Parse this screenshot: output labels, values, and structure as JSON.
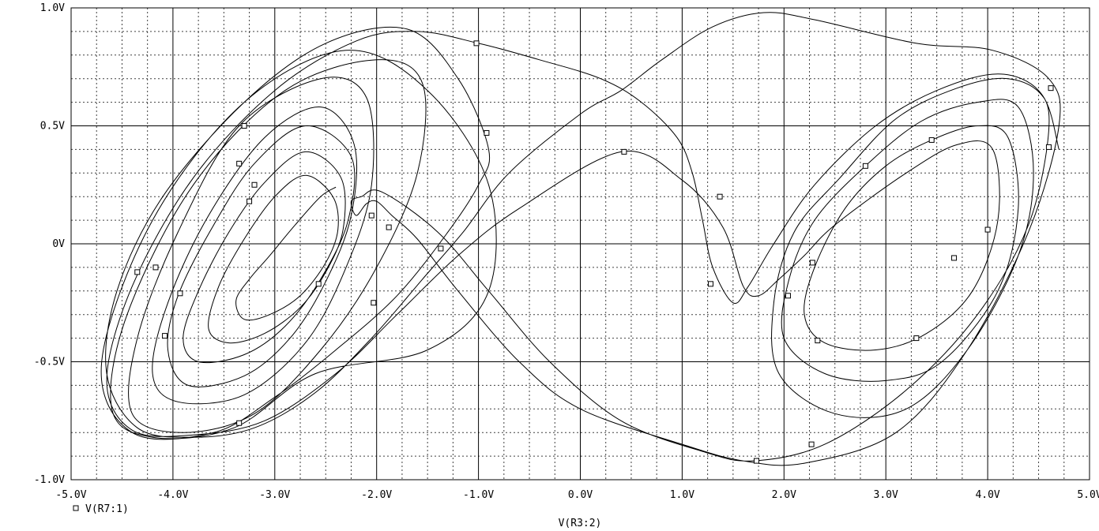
{
  "chart_data": {
    "type": "line",
    "xlabel": "V(R3:2)",
    "ylabel": "",
    "xlim": [
      -5.0,
      5.0
    ],
    "ylim": [
      -1.0,
      1.0
    ],
    "grid": true,
    "x_ticks": [
      {
        "value": -5.0,
        "label": "-5.0V"
      },
      {
        "value": -4.0,
        "label": "-4.0V"
      },
      {
        "value": -3.0,
        "label": "-3.0V"
      },
      {
        "value": -2.0,
        "label": "-2.0V"
      },
      {
        "value": -1.0,
        "label": "-1.0V"
      },
      {
        "value": 0.0,
        "label": "0.0V"
      },
      {
        "value": 1.0,
        "label": "1.0V"
      },
      {
        "value": 2.0,
        "label": "2.0V"
      },
      {
        "value": 3.0,
        "label": "3.0V"
      },
      {
        "value": 4.0,
        "label": "4.0V"
      },
      {
        "value": 5.0,
        "label": "5.0V"
      }
    ],
    "y_ticks": [
      {
        "value": 1.0,
        "label": "1.0V"
      },
      {
        "value": 0.5,
        "label": "0.5V"
      },
      {
        "value": 0.0,
        "label": "0V"
      },
      {
        "value": -0.5,
        "label": "-0.5V"
      },
      {
        "value": -1.0,
        "label": "-1.0V"
      }
    ],
    "series": [
      {
        "name": "V(R7:1)",
        "legend_symbol": "□",
        "points": [
          [
            -2.4,
            0.24
          ],
          [
            -2.55,
            0.2
          ],
          [
            -2.8,
            0.08
          ],
          [
            -3.05,
            -0.05
          ],
          [
            -3.25,
            -0.15
          ],
          [
            -3.38,
            -0.24
          ],
          [
            -3.3,
            -0.32
          ],
          [
            -3.05,
            -0.3
          ],
          [
            -2.75,
            -0.22
          ],
          [
            -2.5,
            -0.08
          ],
          [
            -2.38,
            0.06
          ],
          [
            -2.43,
            0.2
          ],
          [
            -2.7,
            0.29
          ],
          [
            -3.0,
            0.2
          ],
          [
            -3.3,
            0.02
          ],
          [
            -3.55,
            -0.18
          ],
          [
            -3.65,
            -0.36
          ],
          [
            -3.45,
            -0.42
          ],
          [
            -3.1,
            -0.38
          ],
          [
            -2.75,
            -0.27
          ],
          [
            -2.5,
            -0.12
          ],
          [
            -2.33,
            0.06
          ],
          [
            -2.35,
            0.28
          ],
          [
            -2.7,
            0.39
          ],
          [
            -3.1,
            0.26
          ],
          [
            -3.45,
            0.05
          ],
          [
            -3.75,
            -0.2
          ],
          [
            -3.9,
            -0.4
          ],
          [
            -3.75,
            -0.5
          ],
          [
            -3.3,
            -0.47
          ],
          [
            -2.9,
            -0.35
          ],
          [
            -2.55,
            -0.15
          ],
          [
            -2.28,
            0.1
          ],
          [
            -2.25,
            0.37
          ],
          [
            -2.7,
            0.5
          ],
          [
            -3.2,
            0.34
          ],
          [
            -3.6,
            0.08
          ],
          [
            -3.95,
            -0.22
          ],
          [
            -4.05,
            -0.45
          ],
          [
            -3.85,
            -0.6
          ],
          [
            -3.3,
            -0.56
          ],
          [
            -2.85,
            -0.4
          ],
          [
            -2.5,
            -0.16
          ],
          [
            -2.25,
            0.12
          ],
          [
            -2.22,
            0.42
          ],
          [
            -2.55,
            0.58
          ],
          [
            -3.1,
            0.45
          ],
          [
            -3.65,
            0.12
          ],
          [
            -4.05,
            -0.25
          ],
          [
            -4.2,
            -0.55
          ],
          [
            -3.95,
            -0.67
          ],
          [
            -3.3,
            -0.64
          ],
          [
            -2.7,
            -0.42
          ],
          [
            -2.3,
            -0.1
          ],
          [
            -2.05,
            0.25
          ],
          [
            -2.1,
            0.62
          ],
          [
            -2.55,
            0.7
          ],
          [
            -3.35,
            0.5
          ],
          [
            -3.95,
            0.05
          ],
          [
            -4.35,
            -0.4
          ],
          [
            -4.4,
            -0.72
          ],
          [
            -3.9,
            -0.8
          ],
          [
            -3.2,
            -0.72
          ],
          [
            -2.55,
            -0.45
          ],
          [
            -2.0,
            -0.1
          ],
          [
            -1.6,
            0.3
          ],
          [
            -1.55,
            0.68
          ],
          [
            -2.0,
            0.78
          ],
          [
            -2.9,
            0.65
          ],
          [
            -3.8,
            0.25
          ],
          [
            -4.45,
            -0.3
          ],
          [
            -4.6,
            -0.7
          ],
          [
            -4.2,
            -0.82
          ],
          [
            -3.4,
            -0.78
          ],
          [
            -2.6,
            -0.55
          ],
          [
            -1.5,
            -0.45
          ],
          [
            -0.9,
            -0.2
          ],
          [
            -0.9,
            0.25
          ],
          [
            -1.5,
            0.65
          ],
          [
            -2.3,
            0.82
          ],
          [
            -3.3,
            0.6
          ],
          [
            -4.2,
            0.1
          ],
          [
            -4.7,
            -0.5
          ],
          [
            -4.4,
            -0.8
          ],
          [
            -3.6,
            -0.8
          ],
          [
            -3.0,
            -0.65
          ],
          [
            -2.4,
            -0.45
          ],
          [
            -1.8,
            -0.22
          ],
          [
            -1.3,
            0.05
          ],
          [
            -1.0,
            0.25
          ],
          [
            -0.9,
            0.4
          ],
          [
            -1.2,
            0.7
          ],
          [
            -1.7,
            0.91
          ],
          [
            -2.5,
            0.85
          ],
          [
            -3.3,
            0.6
          ],
          [
            -4.1,
            0.2
          ],
          [
            -4.55,
            -0.2
          ],
          [
            -4.65,
            -0.55
          ],
          [
            -4.35,
            -0.78
          ],
          [
            -3.8,
            -0.82
          ],
          [
            -3.2,
            -0.78
          ],
          [
            -2.6,
            -0.63
          ],
          [
            -2.05,
            -0.4
          ],
          [
            -1.55,
            -0.15
          ],
          [
            -1.15,
            0.05
          ],
          [
            -0.7,
            0.3
          ],
          [
            0.0,
            0.55
          ],
          [
            0.4,
            0.65
          ],
          [
            0.8,
            0.78
          ],
          [
            1.3,
            0.92
          ],
          [
            1.8,
            0.98
          ],
          [
            2.3,
            0.95
          ],
          [
            3.3,
            0.85
          ],
          [
            4.05,
            0.82
          ],
          [
            4.6,
            0.7
          ],
          [
            4.7,
            0.5
          ],
          [
            4.4,
            0.05
          ],
          [
            3.8,
            -0.45
          ],
          [
            3.1,
            -0.8
          ],
          [
            2.2,
            -0.93
          ],
          [
            1.6,
            -0.92
          ],
          [
            1.0,
            -0.85
          ],
          [
            0.0,
            -0.7
          ],
          [
            -0.6,
            -0.5
          ],
          [
            -1.2,
            -0.2
          ],
          [
            -1.6,
            0.02
          ],
          [
            -1.85,
            0.12
          ],
          [
            -2.0,
            0.18
          ],
          [
            -2.1,
            0.17
          ],
          [
            -2.2,
            0.12
          ],
          [
            -2.25,
            0.18
          ],
          [
            -2.15,
            0.2
          ],
          [
            -1.95,
            0.22
          ],
          [
            -1.4,
            0.05
          ],
          [
            -0.9,
            -0.2
          ],
          [
            -0.3,
            -0.5
          ],
          [
            0.4,
            -0.75
          ],
          [
            1.2,
            -0.88
          ],
          [
            1.7,
            -0.92
          ],
          [
            2.4,
            -0.85
          ],
          [
            3.2,
            -0.62
          ],
          [
            3.9,
            -0.3
          ],
          [
            4.4,
            0.08
          ],
          [
            4.6,
            0.48
          ],
          [
            4.5,
            0.65
          ],
          [
            4.1,
            0.72
          ],
          [
            3.5,
            0.65
          ],
          [
            2.9,
            0.5
          ],
          [
            2.3,
            0.25
          ],
          [
            1.9,
            0.0
          ],
          [
            1.65,
            -0.18
          ],
          [
            1.5,
            -0.25
          ],
          [
            1.3,
            -0.1
          ],
          [
            1.2,
            0.1
          ],
          [
            1.1,
            0.3
          ],
          [
            0.95,
            0.45
          ],
          [
            0.6,
            0.6
          ],
          [
            0.2,
            0.7
          ],
          [
            -0.4,
            0.78
          ],
          [
            -1.0,
            0.85
          ],
          [
            -1.6,
            0.9
          ],
          [
            -2.2,
            0.86
          ],
          [
            -3.0,
            0.65
          ],
          [
            -3.8,
            0.28
          ],
          [
            -4.4,
            -0.18
          ],
          [
            -4.65,
            -0.58
          ],
          [
            -4.4,
            -0.79
          ],
          [
            -3.8,
            -0.81
          ],
          [
            -3.1,
            -0.75
          ],
          [
            -2.4,
            -0.55
          ],
          [
            -1.8,
            -0.3
          ],
          [
            -1.2,
            -0.05
          ],
          [
            -0.6,
            0.15
          ],
          [
            0.4,
            0.39
          ],
          [
            1.0,
            0.27
          ],
          [
            1.4,
            0.07
          ],
          [
            1.6,
            -0.18
          ],
          [
            1.75,
            -0.22
          ],
          [
            1.95,
            -0.15
          ],
          [
            2.2,
            -0.05
          ],
          [
            2.5,
            0.08
          ],
          [
            3.2,
            0.3
          ],
          [
            3.7,
            0.42
          ],
          [
            4.05,
            0.4
          ],
          [
            4.1,
            0.1
          ],
          [
            3.85,
            -0.2
          ],
          [
            3.4,
            -0.38
          ],
          [
            2.9,
            -0.45
          ],
          [
            2.4,
            -0.42
          ],
          [
            2.2,
            -0.3
          ],
          [
            2.3,
            -0.1
          ],
          [
            2.6,
            0.15
          ],
          [
            3.0,
            0.33
          ],
          [
            3.45,
            0.44
          ],
          [
            3.9,
            0.5
          ],
          [
            4.2,
            0.45
          ],
          [
            4.3,
            0.15
          ],
          [
            4.1,
            -0.2
          ],
          [
            3.55,
            -0.5
          ],
          [
            3.0,
            -0.58
          ],
          [
            2.4,
            -0.55
          ],
          [
            2.0,
            -0.4
          ],
          [
            2.05,
            -0.15
          ],
          [
            2.3,
            0.1
          ],
          [
            2.8,
            0.33
          ],
          [
            3.35,
            0.52
          ],
          [
            3.9,
            0.6
          ],
          [
            4.3,
            0.58
          ],
          [
            4.45,
            0.3
          ],
          [
            4.3,
            -0.05
          ],
          [
            3.8,
            -0.45
          ],
          [
            3.2,
            -0.7
          ],
          [
            2.5,
            -0.72
          ],
          [
            1.95,
            -0.55
          ],
          [
            1.9,
            -0.25
          ],
          [
            2.1,
            0.05
          ],
          [
            2.55,
            0.28
          ],
          [
            3.1,
            0.53
          ],
          [
            3.7,
            0.66
          ],
          [
            4.2,
            0.7
          ],
          [
            4.55,
            0.62
          ],
          [
            4.7,
            0.4
          ]
        ],
        "markers": [
          [
            -4.35,
            -0.12
          ],
          [
            -4.17,
            -0.1
          ],
          [
            -4.08,
            -0.39
          ],
          [
            -3.93,
            -0.21
          ],
          [
            -3.35,
            0.34
          ],
          [
            -3.3,
            0.5
          ],
          [
            -3.35,
            -0.76
          ],
          [
            -3.25,
            0.18
          ],
          [
            -3.2,
            0.25
          ],
          [
            -2.57,
            -0.17
          ],
          [
            -2.05,
            0.12
          ],
          [
            -2.03,
            -0.25
          ],
          [
            -1.88,
            0.07
          ],
          [
            -1.37,
            -0.02
          ],
          [
            -1.02,
            0.85
          ],
          [
            -0.92,
            0.47
          ],
          [
            0.43,
            0.39
          ],
          [
            1.28,
            -0.17
          ],
          [
            1.37,
            0.2
          ],
          [
            1.73,
            -0.92
          ],
          [
            2.04,
            -0.22
          ],
          [
            2.27,
            -0.85
          ],
          [
            2.28,
            -0.08
          ],
          [
            2.33,
            -0.41
          ],
          [
            2.8,
            0.33
          ],
          [
            3.3,
            -0.4
          ],
          [
            3.45,
            0.44
          ],
          [
            3.67,
            -0.06
          ],
          [
            4.0,
            0.06
          ],
          [
            4.6,
            0.41
          ],
          [
            4.62,
            0.66
          ]
        ]
      }
    ]
  }
}
